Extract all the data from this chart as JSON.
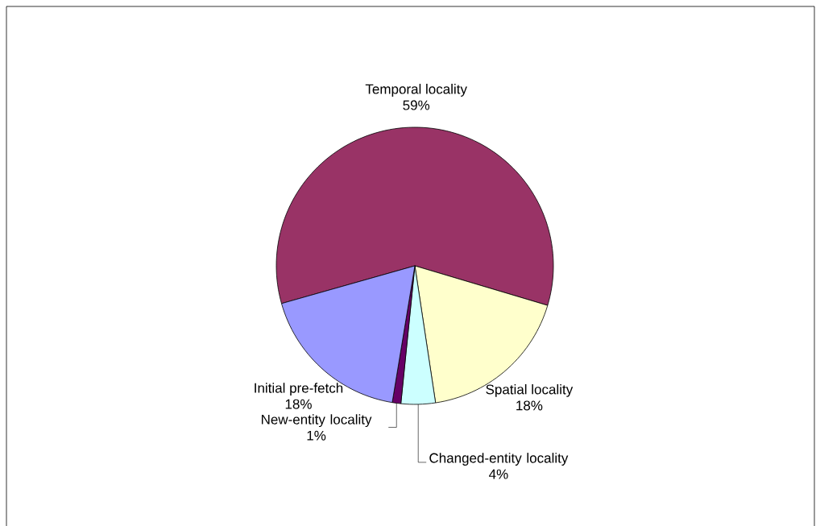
{
  "chart_data": {
    "type": "pie",
    "categories": [
      "Temporal locality",
      "Spatial locality",
      "Changed-entity locality",
      "New-entity locality",
      "Initial pre-fetch"
    ],
    "values": [
      59,
      18,
      4,
      1,
      18
    ],
    "value_labels": [
      "59%",
      "18%",
      "4%",
      "1%",
      "18%"
    ],
    "colors": [
      "#993366",
      "#ffffcc",
      "#ccffff",
      "#660066",
      "#9999ff"
    ]
  }
}
